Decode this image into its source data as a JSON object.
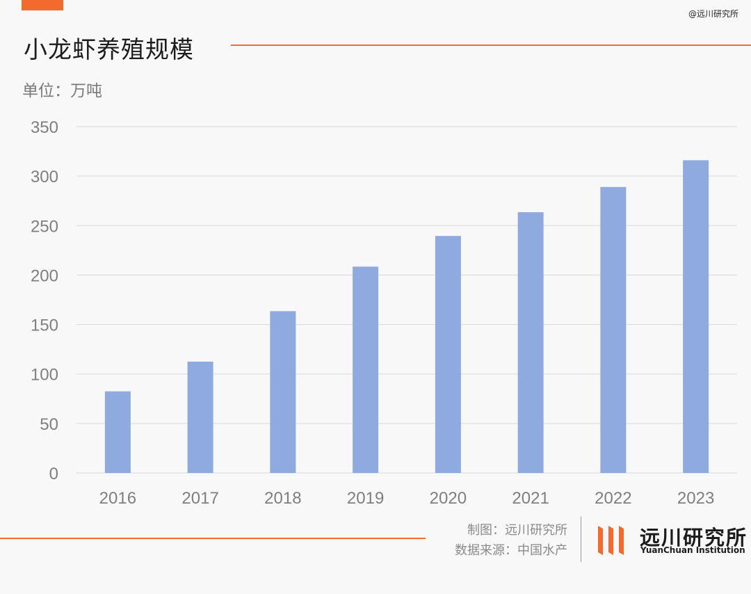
{
  "watermark": "@远川研究所",
  "header": {
    "title": "小龙虾养殖规模",
    "unit": "单位：万吨"
  },
  "chart_data": {
    "type": "bar",
    "title": "小龙虾养殖规模",
    "ylabel": "单位：万吨",
    "categories": [
      "2016",
      "2017",
      "2018",
      "2019",
      "2020",
      "2021",
      "2022",
      "2023"
    ],
    "values": [
      82.5,
      112.5,
      163.5,
      208.5,
      239.5,
      263.5,
      289,
      316
    ],
    "ylim": [
      0,
      350
    ],
    "yticks": [
      0,
      50,
      100,
      150,
      200,
      250,
      300,
      350
    ],
    "grid": true,
    "bar_color": "#8eaadf"
  },
  "footer": {
    "made_by": "制图：远川研究所",
    "source": "数据来源：中国水产",
    "logo_cn": "远川研究所",
    "logo_en": "YuanChuan Institution"
  },
  "colors": {
    "accent": "#f26a2d",
    "grid": "#d9d9d9",
    "axis_text": "#7f7f7f"
  }
}
